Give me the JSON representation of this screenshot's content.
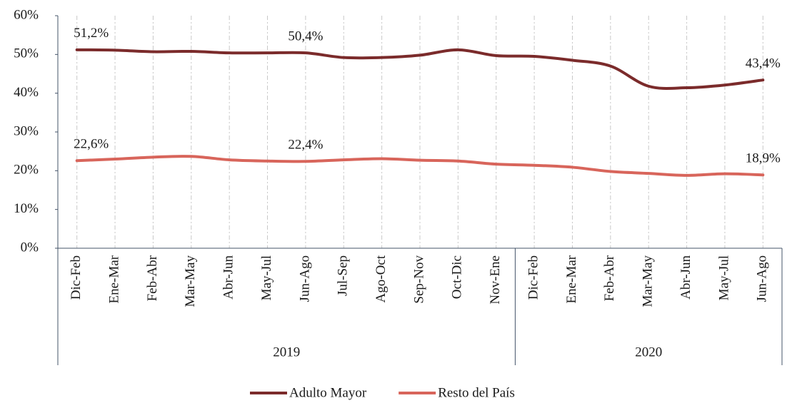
{
  "chart_data": {
    "type": "line",
    "categories": [
      "Dic-Feb",
      "Ene-Mar",
      "Feb-Abr",
      "Mar-May",
      "Abr-Jun",
      "May-Jul",
      "Jun-Ago",
      "Jul-Sep",
      "Ago-Oct",
      "Sep-Nov",
      "Oct-Dic",
      "Nov-Ene",
      "Dic-Feb",
      "Ene-Mar",
      "Feb-Abr",
      "Mar-May",
      "Abr-Jun",
      "May-Jul",
      "Jun-Ago"
    ],
    "category_groups": [
      "2019",
      "2019",
      "2019",
      "2019",
      "2019",
      "2019",
      "2019",
      "2019",
      "2019",
      "2019",
      "2019",
      "2019",
      "2020",
      "2020",
      "2020",
      "2020",
      "2020",
      "2020",
      "2020"
    ],
    "series": [
      {
        "name": "Adulto Mayor",
        "color": "#7b2b2b",
        "values": [
          51.2,
          51.1,
          50.7,
          50.8,
          50.4,
          50.4,
          50.4,
          49.2,
          49.2,
          49.8,
          51.2,
          49.7,
          49.5,
          48.5,
          47.0,
          41.8,
          41.4,
          42.1,
          43.4
        ],
        "value_labels": [
          "51,2%",
          null,
          null,
          null,
          null,
          null,
          "50,4%",
          null,
          null,
          null,
          null,
          null,
          null,
          null,
          null,
          null,
          null,
          null,
          "43,4%"
        ]
      },
      {
        "name": "Resto del País",
        "color": "#d8655b",
        "values": [
          22.6,
          23.0,
          23.5,
          23.7,
          22.8,
          22.5,
          22.4,
          22.8,
          23.1,
          22.7,
          22.5,
          21.7,
          21.4,
          20.9,
          19.8,
          19.3,
          18.8,
          19.2,
          18.9
        ],
        "value_labels": [
          "22,6%",
          null,
          null,
          null,
          null,
          null,
          "22,4%",
          null,
          null,
          null,
          null,
          null,
          null,
          null,
          null,
          null,
          null,
          null,
          "18,9%"
        ]
      }
    ],
    "ylim": [
      0,
      60
    ],
    "yticks": [
      {
        "value": 0,
        "label": "0%"
      },
      {
        "value": 10,
        "label": "10%"
      },
      {
        "value": 20,
        "label": "20%"
      },
      {
        "value": 30,
        "label": "30%"
      },
      {
        "value": 40,
        "label": "40%"
      },
      {
        "value": 50,
        "label": "50%"
      },
      {
        "value": 60,
        "label": "60%"
      }
    ],
    "grid": true,
    "legend": "bottom"
  }
}
